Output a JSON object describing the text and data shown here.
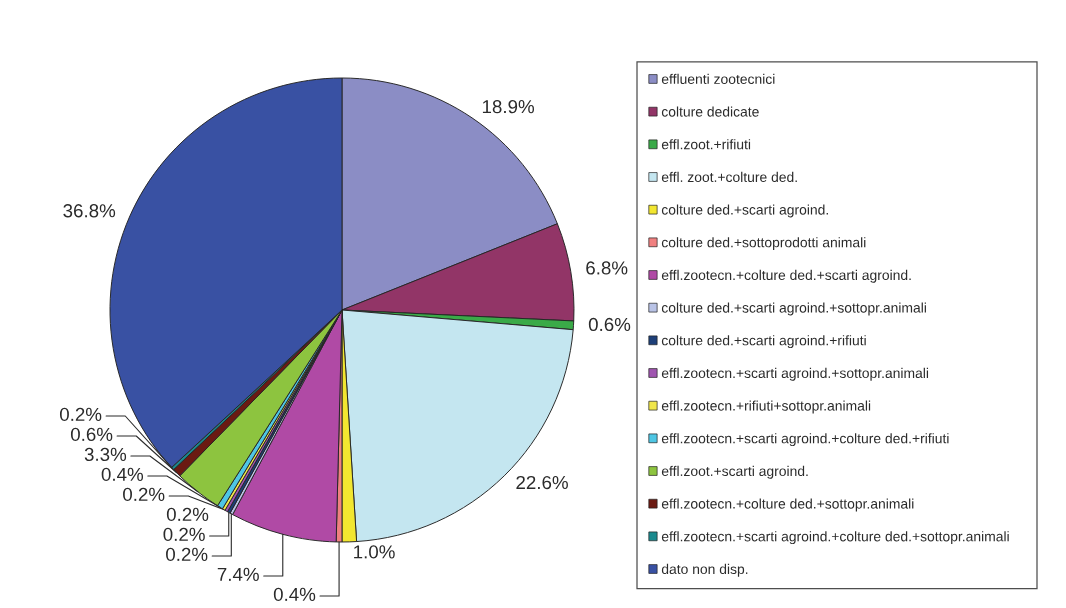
{
  "chart_data": {
    "type": "pie",
    "categories": [
      "effluenti zootecnici",
      "colture dedicate",
      "effl.zoot.+rifiuti",
      "effl. zoot.+colture ded.",
      "colture ded.+scarti agroind.",
      "colture ded.+sottoprodotti animali",
      "effl.zootecn.+colture ded.+scarti agroind.",
      "colture ded.+scarti agroind.+sottopr.animali",
      "colture ded.+scarti agroind.+rifiuti",
      "effl.zootecn.+scarti agroind.+sottopr.animali",
      "effl.zootecn.+rifiuti+sottopr.animali",
      "effl.zootecn.+scarti agroind.+colture ded.+rifiuti",
      "effl.zoot.+scarti agroind.",
      "effl.zootecn.+colture ded.+sottopr.animali",
      "effl.zootecn.+scarti agroind.+colture ded.+sottopr.animali",
      "dato non disp."
    ],
    "values": [
      18.9,
      6.8,
      0.6,
      22.6,
      1.0,
      0.4,
      7.4,
      0.2,
      0.2,
      0.2,
      0.2,
      0.4,
      3.3,
      0.6,
      0.2,
      36.8
    ],
    "colors": [
      "#8b8dc5",
      "#923567",
      "#3aaa48",
      "#c4e6f0",
      "#f2e630",
      "#f08080",
      "#b04aa5",
      "#b9c3e6",
      "#1e3f78",
      "#a055b0",
      "#f0e64a",
      "#4ec6e4",
      "#8dc43f",
      "#6b1a12",
      "#1b8a8e",
      "#3951a3"
    ],
    "value_labels": [
      "18.9%",
      "6.8%",
      "0.6%",
      "22.6%",
      "1.0%",
      "0.4%",
      "7.4%",
      "0.2%",
      "0.2%",
      "0.2%",
      "0.2%",
      "0.4%",
      "3.3%",
      "0.6%",
      "0.2%",
      "36.8%"
    ],
    "legend": "right"
  }
}
